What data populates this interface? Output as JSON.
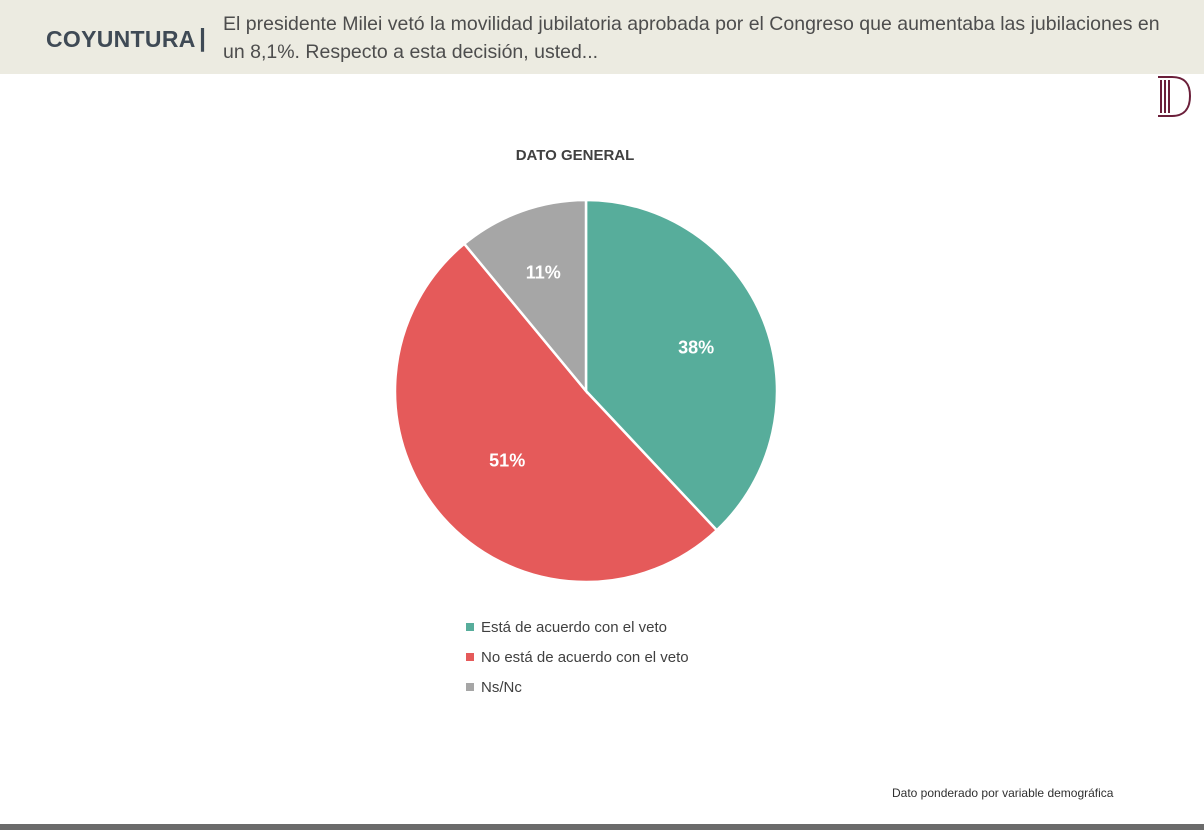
{
  "header": {
    "section": "COYUNTURA",
    "separator": "|",
    "question": "El presidente Milei vetó la movilidad jubilatoria aprobada por el Congreso que aumentaba las jubilaciones en un 8,1%. Respecto a esta decisión, usted..."
  },
  "logo": {
    "icon": "column-d-logo",
    "color": "#6b1f3a"
  },
  "chart_data": {
    "type": "pie",
    "title": "DATO GENERAL",
    "start": "12 o'clock, clockwise",
    "series": [
      {
        "name": "Está de acuerdo con el veto",
        "value": 38,
        "label": "38%",
        "color": "#57ad9b"
      },
      {
        "name": "No está de acuerdo con el veto",
        "value": 51,
        "label": "51%",
        "color": "#e55a5a"
      },
      {
        "name": "Ns/Nc",
        "value": 11,
        "label": "11%",
        "color": "#a6a6a6"
      }
    ],
    "legend_position": "bottom"
  },
  "footnote": "Dato ponderado por variable demográfica"
}
